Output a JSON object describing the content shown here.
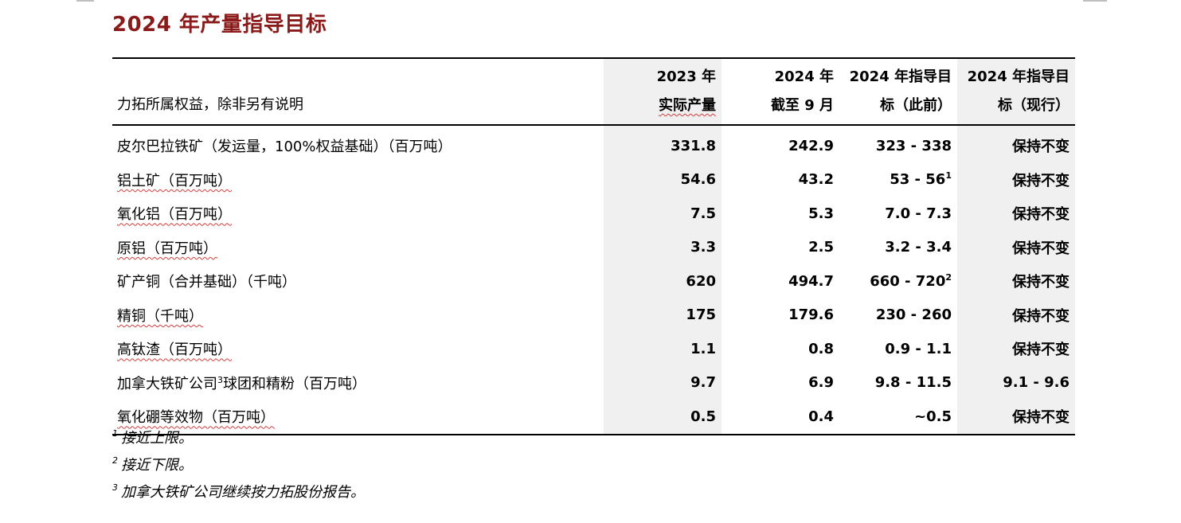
{
  "title": "2024 年产量指导目标",
  "table": {
    "header_label": "力拓所属权益，除非另有说明",
    "columns": [
      {
        "line1": "2023 年",
        "line2": "实际产量"
      },
      {
        "line1": "2024 年",
        "line2": "截至 9 月"
      },
      {
        "line1": "2024 年指导目",
        "line2": "标（此前）"
      },
      {
        "line1": "2024 年指导目",
        "line2": "标（现行）"
      }
    ],
    "rows": [
      {
        "label": "皮尔巴拉铁矿（发运量，100%权益基础）（百万吨）",
        "c1": "331.8",
        "c2": "242.9",
        "c3": "323 - 338",
        "c3_sup": "",
        "c4": "保持不变"
      },
      {
        "label": "铝土矿（百万吨）",
        "c1": "54.6",
        "c2": "43.2",
        "c3": "53 - 56",
        "c3_sup": "1",
        "c4": "保持不变"
      },
      {
        "label": "氧化铝（百万吨）",
        "c1": "7.5",
        "c2": "5.3",
        "c3": "7.0 - 7.3",
        "c3_sup": "",
        "c4": "保持不变"
      },
      {
        "label": "原铝（百万吨）",
        "c1": "3.3",
        "c2": "2.5",
        "c3": "3.2 - 3.4",
        "c3_sup": "",
        "c4": "保持不变"
      },
      {
        "label": "矿产铜（合并基础）（千吨）",
        "c1": "620",
        "c2": "494.7",
        "c3": "660 - 720",
        "c3_sup": "2",
        "c4": "保持不变"
      },
      {
        "label": "精铜（千吨）",
        "c1": "175",
        "c2": "179.6",
        "c3": "230 - 260",
        "c3_sup": "",
        "c4": "保持不变"
      },
      {
        "label": "高钛渣（百万吨）",
        "c1": "1.1",
        "c2": "0.8",
        "c3": "0.9 - 1.1",
        "c3_sup": "",
        "c4": "保持不变"
      },
      {
        "label_pre": "加拿大铁矿公司",
        "label_sup": "3",
        "label_post": "球团和精粉（百万吨）",
        "c1": "9.7",
        "c2": "6.9",
        "c3": "9.8 - 11.5",
        "c3_sup": "",
        "c4": "9.1 - 9.6"
      },
      {
        "label": "氧化硼等效物（百万吨）",
        "c1": "0.5",
        "c2": "0.4",
        "c3": "~0.5",
        "c3_sup": "",
        "c4": "保持不变"
      }
    ]
  },
  "footnotes": [
    {
      "num": "1",
      "text": "接近上限。"
    },
    {
      "num": "2",
      "text": "接近下限。"
    },
    {
      "num": "3",
      "text": "加拿大铁矿公司继续按力拓股份报告。"
    }
  ]
}
